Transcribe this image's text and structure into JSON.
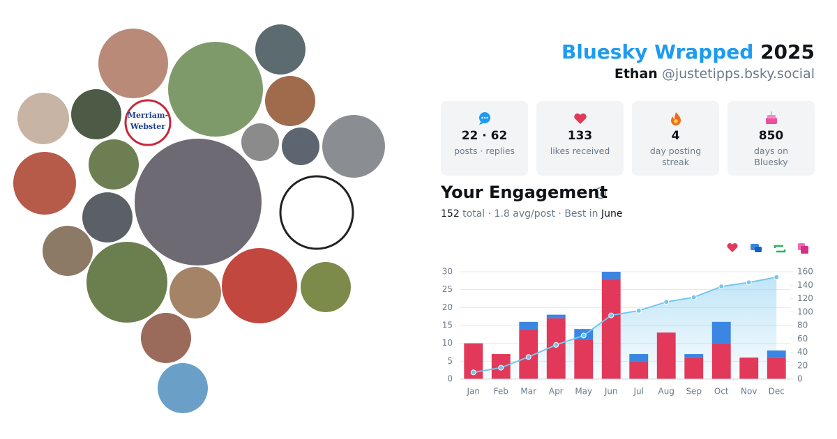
{
  "header": {
    "title": "Bluesky Wrapped",
    "year": "2025",
    "name": "Ethan",
    "handle": "@justetipps.bsky.social"
  },
  "stats": [
    {
      "value": "22 · 62",
      "label": "posts · replies"
    },
    {
      "value": "133",
      "label": "likes received"
    },
    {
      "value": "4",
      "label": "day posting streak"
    },
    {
      "value": "850",
      "label": "days on Bluesky"
    }
  ],
  "engagement": {
    "heading": "Your Engagement",
    "total": "152",
    "middle": " total · 1.8 avg/post · Best in ",
    "best": "June"
  },
  "avatar_logo": [
    "Merriam-",
    "Webster"
  ],
  "chart_data": {
    "type": "bar",
    "categories": [
      "Jan",
      "Feb",
      "Mar",
      "Apr",
      "May",
      "Jun",
      "Jul",
      "Aug",
      "Sep",
      "Oct",
      "Nov",
      "Dec"
    ],
    "series": [
      {
        "color": "#e2395a",
        "values": [
          10,
          7,
          14,
          17,
          11,
          28,
          5,
          13,
          6,
          10,
          6,
          6
        ]
      },
      {
        "color": "#3b86e2",
        "values": [
          0,
          0,
          2,
          1,
          3,
          2,
          2,
          0,
          1,
          6,
          0,
          2
        ]
      },
      {
        "color": "#74c6ee",
        "type": "line",
        "axis": "y2",
        "values": [
          10,
          17,
          33,
          51,
          65,
          95,
          102,
          115,
          122,
          138,
          144,
          152
        ]
      }
    ],
    "ylim": [
      0,
      30
    ],
    "yticks": [
      0,
      5,
      10,
      15,
      20,
      25,
      30
    ],
    "y2lim": [
      0,
      160
    ],
    "y2ticks": [
      0,
      20,
      40,
      60,
      80,
      100,
      120,
      140,
      160
    ],
    "grid": true,
    "stacked": true
  }
}
